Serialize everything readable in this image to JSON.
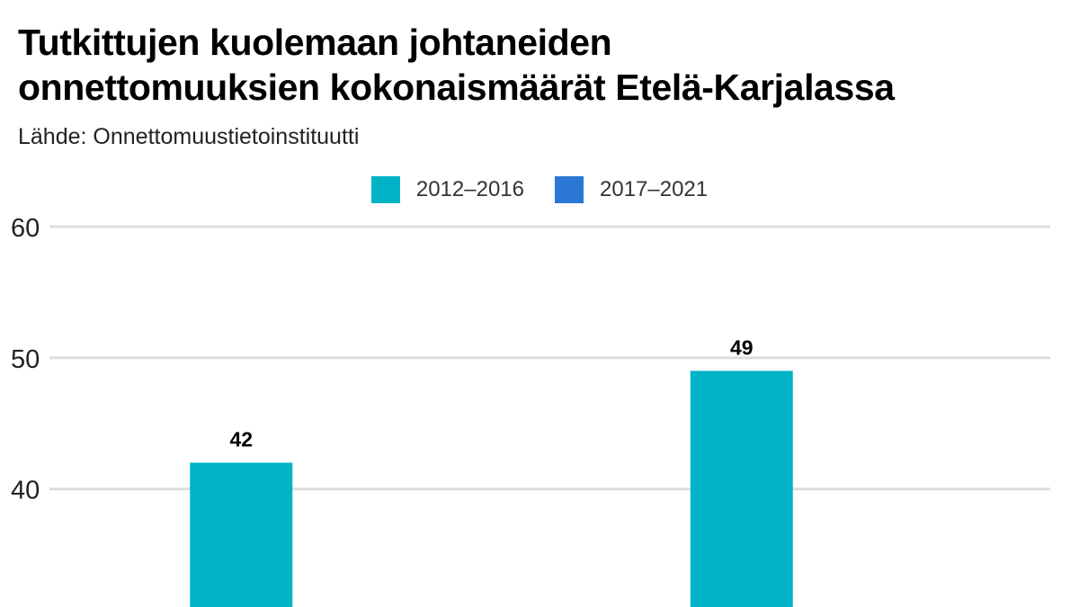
{
  "chart_data": {
    "type": "bar",
    "title_lines": [
      "Tutkittujen kuolemaan johtaneiden",
      "onnettomuuksien kokonaismäärät Etelä-Karjalassa"
    ],
    "subtitle": "Lähde: Onnettomuustietoinstituutti",
    "categories": [
      "",
      ""
    ],
    "series": [
      {
        "name": "2012–2016",
        "color": "#00b3c7",
        "values": [
          42,
          49
        ]
      },
      {
        "name": "2017–2021",
        "color": "#2b77d4",
        "values": [
          null,
          null
        ]
      }
    ],
    "yticks": [
      40,
      50,
      60
    ],
    "ylim": [
      31,
      60
    ],
    "grid": true,
    "legend_position": "top-center",
    "data_labels": [
      "42",
      "49"
    ]
  }
}
